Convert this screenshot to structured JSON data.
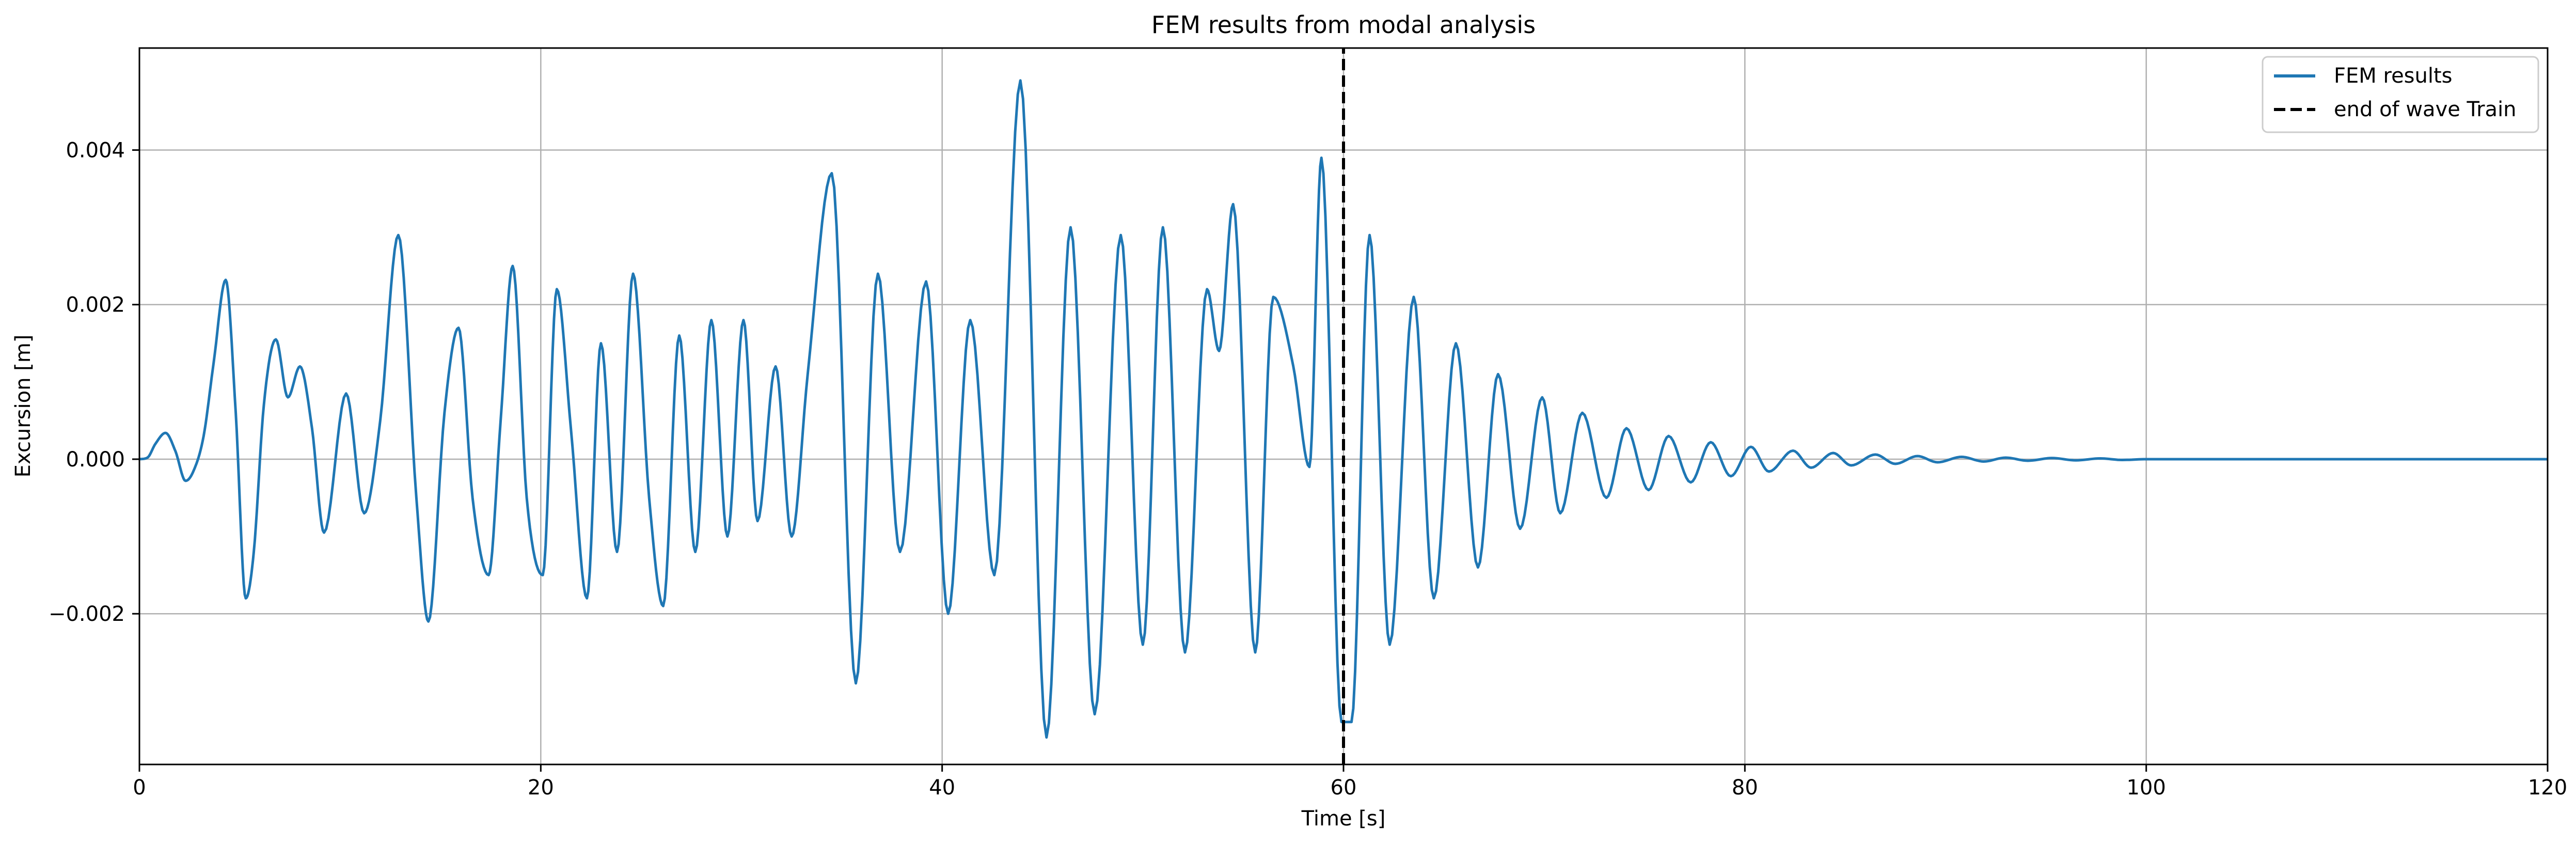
{
  "chart_data": {
    "type": "line",
    "title": "FEM results from modal analysis",
    "xlabel": "Time [s]",
    "ylabel": "Excursion [m]",
    "xlim": [
      0,
      120
    ],
    "ylim": [
      -0.00395,
      0.00532
    ],
    "xticks": [
      0,
      20,
      40,
      60,
      80,
      100,
      120
    ],
    "xtick_labels": [
      "0",
      "20",
      "40",
      "60",
      "80",
      "100",
      "120"
    ],
    "yticks": [
      -0.002,
      0.0,
      0.002,
      0.004
    ],
    "ytick_labels": [
      "−0.002",
      "0.000",
      "0.002",
      "0.004"
    ],
    "grid": true,
    "legend_position": "top-right",
    "series": [
      {
        "name": "FEM results",
        "style": "solid",
        "color": "#1f77b4",
        "x": [
          0,
          0.4,
          0.8,
          1.3,
          1.8,
          2.3,
          2.7,
          3.2,
          3.7,
          4.3,
          4.8,
          5.3,
          5.7,
          6.2,
          6.8,
          7.4,
          8.0,
          8.6,
          9.2,
          10.3,
          11.2,
          12.0,
          12.9,
          13.8,
          14.4,
          15.2,
          15.9,
          16.6,
          17.4,
          18.0,
          18.6,
          19.3,
          20.1,
          20.8,
          21.5,
          22.3,
          23.0,
          23.8,
          24.6,
          25.4,
          26.1,
          26.9,
          27.7,
          28.5,
          29.3,
          30.1,
          30.8,
          31.7,
          32.5,
          33.3,
          34.5,
          35.7,
          36.8,
          37.9,
          39.2,
          40.3,
          41.4,
          42.6,
          43.9,
          45.2,
          46.4,
          47.6,
          48.9,
          50.0,
          51.0,
          52.1,
          53.2,
          53.8,
          54.5,
          55.6,
          56.5,
          57.5,
          58.3,
          58.9,
          59.9,
          60.4,
          61.3,
          62.3,
          63.5,
          64.5,
          65.6,
          66.7,
          67.7,
          68.8,
          69.9,
          70.8,
          71.9,
          73.1,
          74.1,
          75.2,
          76.2,
          77.3,
          78.3,
          79.3,
          80.3,
          81.2,
          82.4,
          83.3,
          84.4,
          85.3,
          86.5,
          87.5,
          88.6,
          89.6,
          90.8,
          91.9,
          93.0,
          94.1,
          95.3,
          96.5,
          97.7,
          98.8,
          100.0,
          102.0,
          104.0,
          106.0,
          108.0,
          110.0,
          112.0,
          114.0,
          116.0,
          118.0,
          120.0
        ],
        "y": [
          0.0,
          2e-05,
          0.0002,
          0.00034,
          0.0001,
          -0.00028,
          -0.00015,
          0.0003,
          0.00125,
          0.00232,
          0.0006,
          -0.0018,
          -0.0012,
          0.0007,
          0.00155,
          0.0008,
          0.0012,
          0.0004,
          -0.00095,
          0.00085,
          -0.0007,
          0.0005,
          0.0029,
          -0.0005,
          -0.0021,
          0.0006,
          0.0017,
          -0.0005,
          -0.0015,
          0.0005,
          0.0025,
          -0.0005,
          -0.0015,
          0.0022,
          0.0004,
          -0.0018,
          0.0015,
          -0.0012,
          0.0024,
          -0.0005,
          -0.0019,
          0.0016,
          -0.0012,
          0.0018,
          -0.001,
          0.0018,
          -0.0008,
          0.0012,
          -0.001,
          0.0011,
          0.0037,
          -0.0029,
          0.0024,
          -0.0012,
          0.0023,
          -0.002,
          0.0018,
          -0.0015,
          0.0049,
          -0.0036,
          0.003,
          -0.0033,
          0.0029,
          -0.0024,
          0.003,
          -0.0025,
          0.0022,
          0.0014,
          0.0033,
          -0.0025,
          0.0021,
          0.0012,
          -0.0001,
          0.0039,
          -0.0034,
          -0.0034,
          0.0029,
          -0.0024,
          0.0021,
          -0.0018,
          0.0015,
          -0.0014,
          0.0011,
          -0.0009,
          0.0008,
          -0.0007,
          0.0006,
          -0.0005,
          0.0004,
          -0.0004,
          0.0003,
          -0.0003,
          0.00022,
          -0.00022,
          0.00016,
          -0.00016,
          0.00011,
          -0.00011,
          8e-05,
          -8e-05,
          6e-05,
          -6e-05,
          4e-05,
          -4e-05,
          3e-05,
          -3e-05,
          2e-05,
          -2e-05,
          1.5e-05,
          -1.5e-05,
          1e-05,
          -1e-05,
          0.0,
          0.0,
          0.0,
          0.0,
          0.0,
          0.0,
          0.0,
          0.0,
          0.0,
          0.0,
          0.0
        ]
      },
      {
        "name": "end of wave Train",
        "style": "dashed",
        "color": "#000000",
        "x": [
          60,
          60
        ],
        "y": [
          -0.00395,
          0.00532
        ]
      }
    ]
  }
}
